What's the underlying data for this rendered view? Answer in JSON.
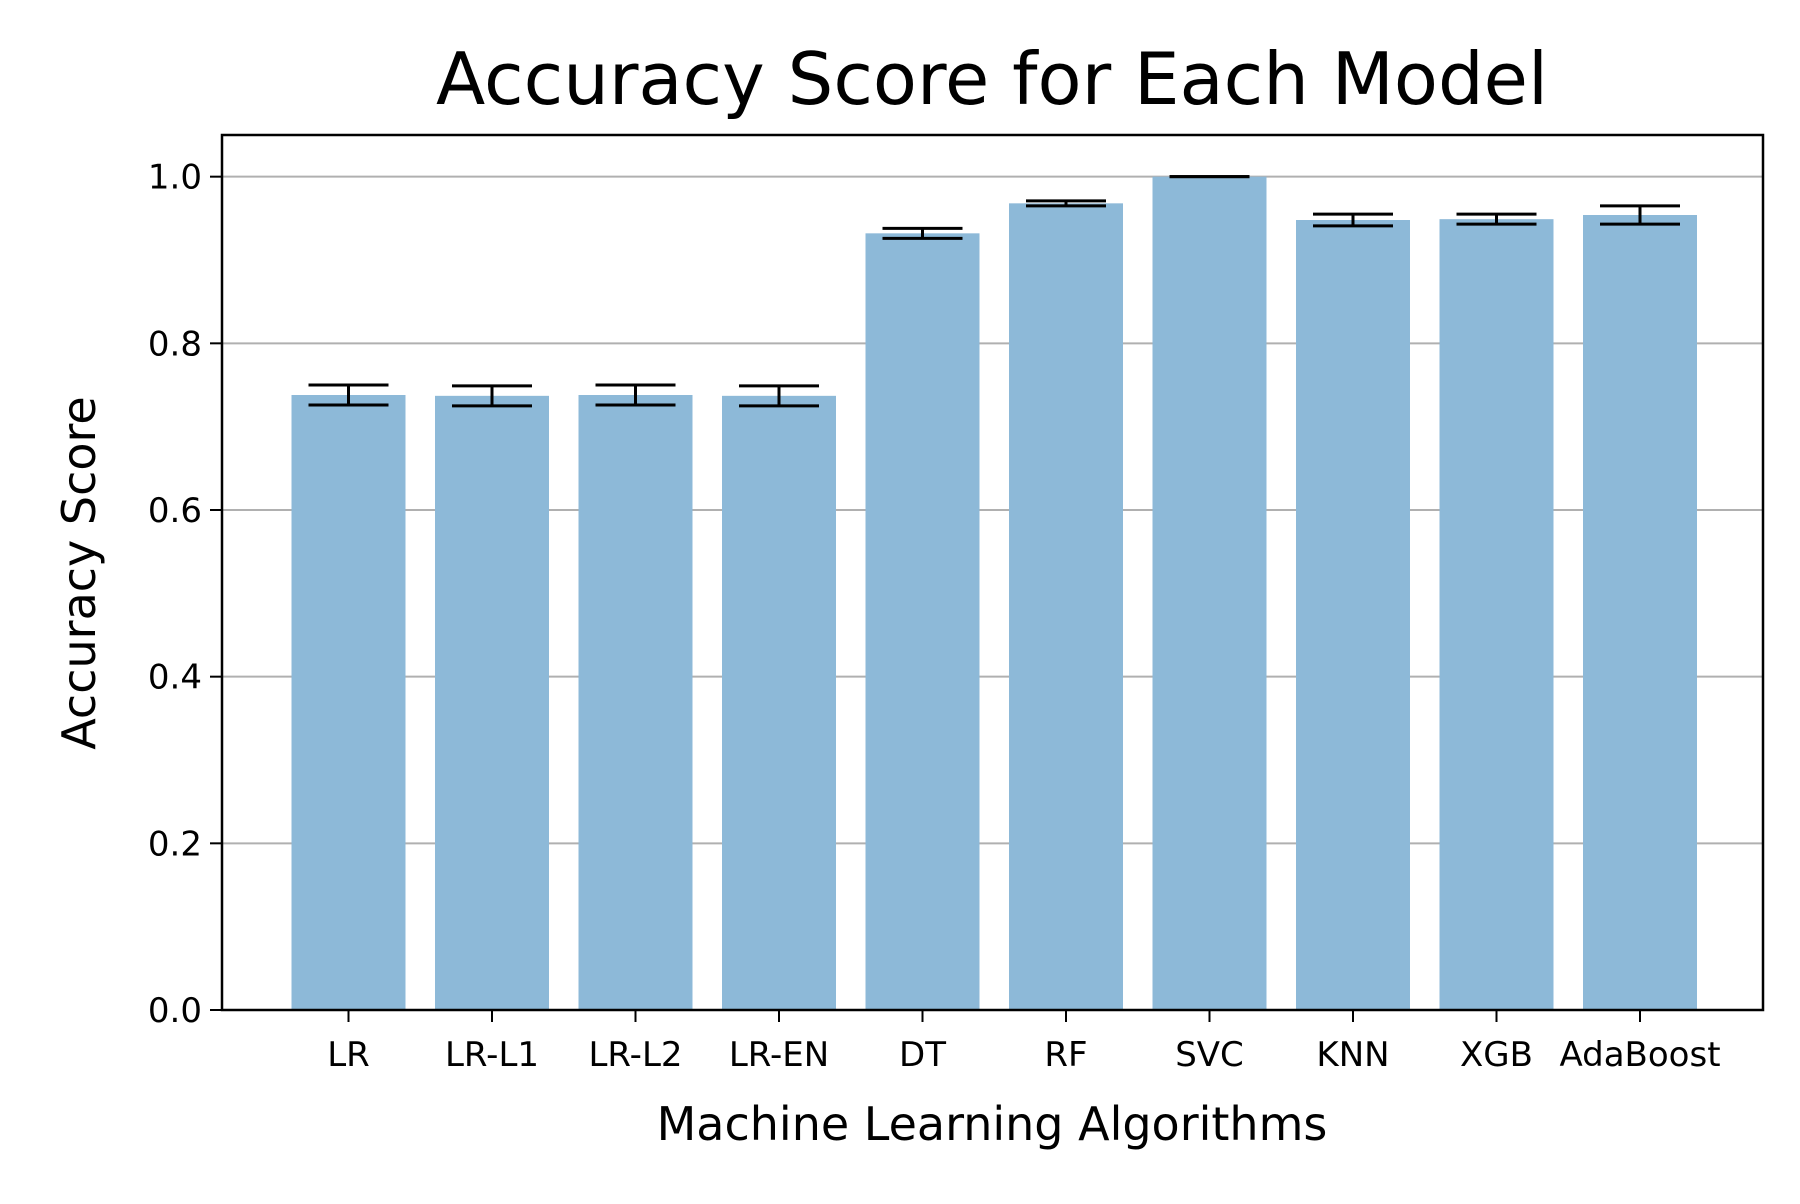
{
  "chart_data": {
    "type": "bar",
    "title": "Accuracy Score for Each Model",
    "xlabel": "Machine Learning Algorithms",
    "ylabel": "Accuracy Score",
    "categories": [
      "LR",
      "LR-L1",
      "LR-L2",
      "LR-EN",
      "DT",
      "RF",
      "SVC",
      "KNN",
      "XGB",
      "AdaBoost"
    ],
    "values": [
      0.738,
      0.737,
      0.738,
      0.737,
      0.932,
      0.968,
      1.0,
      0.948,
      0.949,
      0.954
    ],
    "errors": [
      0.012,
      0.012,
      0.012,
      0.012,
      0.006,
      0.003,
      0.0,
      0.007,
      0.006,
      0.011
    ],
    "ylim": [
      0,
      1.05
    ],
    "yticks": [
      0.0,
      0.2,
      0.4,
      0.6,
      0.8,
      1.0
    ],
    "ytick_labels": [
      "0.0",
      "0.2",
      "0.4",
      "0.6",
      "0.8",
      "1.0"
    ],
    "grid": "horizontal",
    "bar_color": "#8db9d8",
    "error_color": "#000000",
    "grid_color": "#b0b0b0"
  }
}
